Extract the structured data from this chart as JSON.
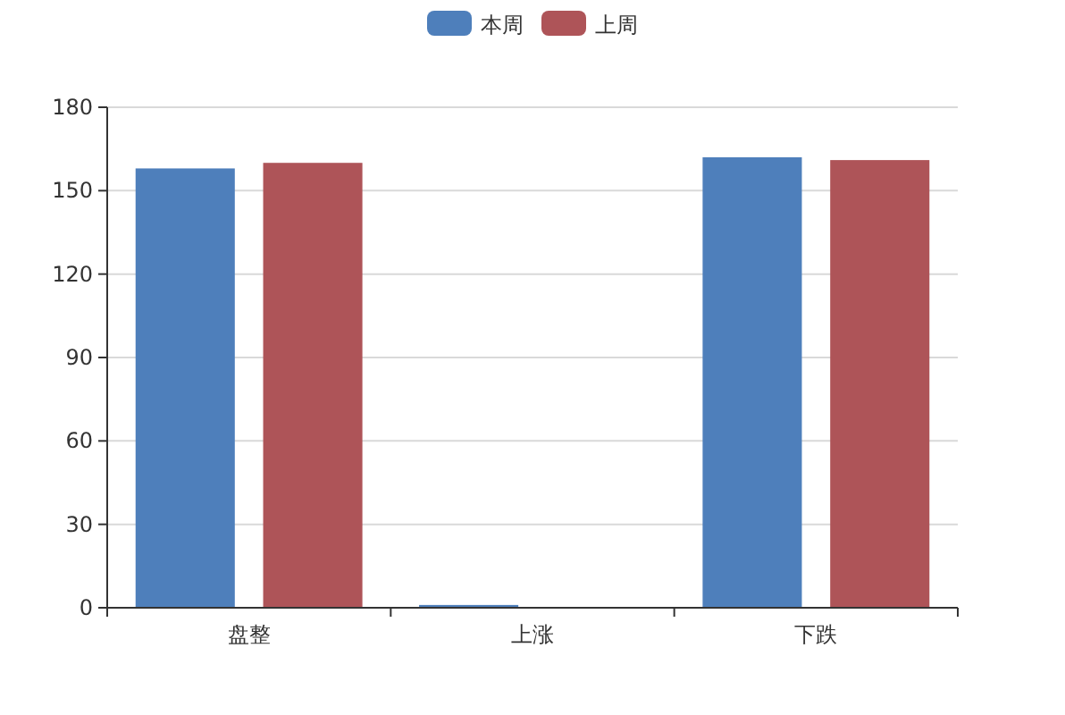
{
  "chart_data": {
    "type": "bar",
    "categories": [
      "盘整",
      "上涨",
      "下跌"
    ],
    "series": [
      {
        "name": "本周",
        "color": "#4e7fbb",
        "values": [
          158,
          1,
          162
        ]
      },
      {
        "name": "上周",
        "color": "#ae5458",
        "values": [
          160,
          0,
          161
        ]
      }
    ],
    "ylim": [
      0,
      180
    ],
    "yticks": [
      0,
      30,
      60,
      90,
      120,
      150,
      180
    ],
    "grid": "y",
    "legend": "top"
  }
}
